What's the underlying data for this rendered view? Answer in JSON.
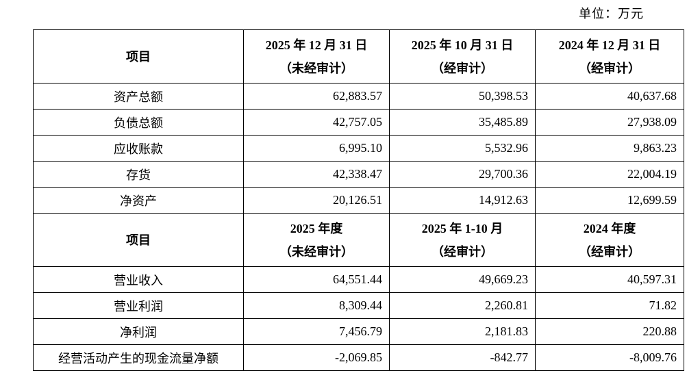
{
  "unit_label": "单位：万元",
  "balance_section": {
    "item_header": "项目",
    "columns": [
      {
        "period": "2025 年 12 月 31 日",
        "audit": "（未经审计）"
      },
      {
        "period": "2025 年 10 月 31 日",
        "audit": "（经审计）"
      },
      {
        "period": "2024 年 12 月 31 日",
        "audit": "（经审计）"
      }
    ],
    "rows": [
      {
        "label": "资产总额",
        "values": [
          "62,883.57",
          "50,398.53",
          "40,637.68"
        ]
      },
      {
        "label": "负债总额",
        "values": [
          "42,757.05",
          "35,485.89",
          "27,938.09"
        ]
      },
      {
        "label": "应收账款",
        "values": [
          "6,995.10",
          "5,532.96",
          "9,863.23"
        ]
      },
      {
        "label": "存货",
        "values": [
          "42,338.47",
          "29,700.36",
          "22,004.19"
        ]
      },
      {
        "label": "净资产",
        "values": [
          "20,126.51",
          "14,912.63",
          "12,699.59"
        ]
      }
    ]
  },
  "income_section": {
    "item_header": "项目",
    "columns": [
      {
        "period": "2025 年度",
        "audit": "（未经审计）"
      },
      {
        "period": "2025 年 1-10 月",
        "audit": "（经审计）"
      },
      {
        "period": "2024 年度",
        "audit": "（经审计）"
      }
    ],
    "rows": [
      {
        "label": "营业收入",
        "values": [
          "64,551.44",
          "49,669.23",
          "40,597.31"
        ]
      },
      {
        "label": "营业利润",
        "values": [
          "8,309.44",
          "2,260.81",
          "71.82"
        ]
      },
      {
        "label": "净利润",
        "values": [
          "7,456.79",
          "2,181.83",
          "220.88"
        ]
      },
      {
        "label": "经营活动产生的现金流量净额",
        "values": [
          "-2,069.85",
          "-842.77",
          "-8,009.76"
        ]
      }
    ]
  }
}
